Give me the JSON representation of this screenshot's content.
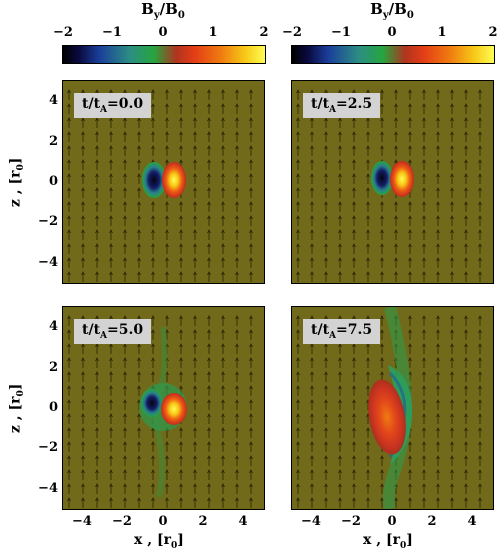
{
  "colorbars": [
    {
      "title_main": "B",
      "title_sub1": "y",
      "title_sep": "/B",
      "title_sub2": "0",
      "ticks": [
        "−2",
        "−1",
        "0",
        "1",
        "2"
      ],
      "range": [
        -2,
        2
      ]
    },
    {
      "title_main": "B",
      "title_sub1": "y",
      "title_sep": "/B",
      "title_sub2": "0",
      "ticks": [
        "−2",
        "−1",
        "0",
        "1",
        "2"
      ],
      "range": [
        -2,
        2
      ]
    }
  ],
  "panels": [
    {
      "t_main": "t/t",
      "t_sub": "A",
      "t_value": "=0.0"
    },
    {
      "t_main": "t/t",
      "t_sub": "A",
      "t_value": "=2.5"
    },
    {
      "t_main": "t/t",
      "t_sub": "A",
      "t_value": "=5.0"
    },
    {
      "t_main": "t/t",
      "t_sub": "A",
      "t_value": "=7.5"
    }
  ],
  "axes": {
    "x_label_main": "x , [r",
    "x_label_sub": "0",
    "x_label_end": "]",
    "z_label_main": "z , [r",
    "z_label_sub": "0",
    "z_label_end": "]",
    "x_ticks": [
      "−4",
      "−2",
      "0",
      "2",
      "4"
    ],
    "z_ticks": [
      "4",
      "2",
      "0",
      "−2",
      "−4"
    ],
    "xlim": [
      -5,
      5
    ],
    "zlim": [
      -5,
      5
    ]
  },
  "colors": {
    "background_field": "#706a1a",
    "label_box": "#d3d3d3"
  }
}
